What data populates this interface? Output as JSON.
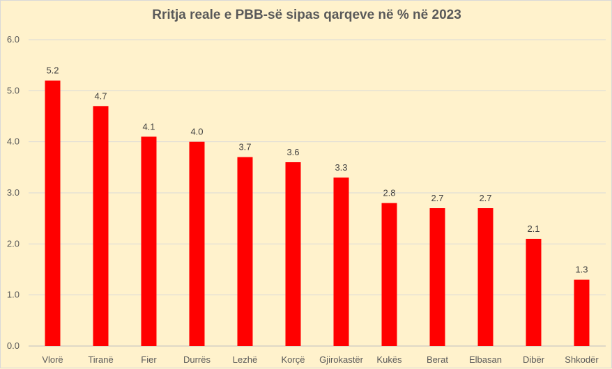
{
  "chart_data": {
    "type": "bar",
    "title": "Rritja reale e PBB-së sipas qarqeve në % në 2023",
    "categories": [
      "Vlorë",
      "Tiranë",
      "Fier",
      "Durrës",
      "Lezhë",
      "Korçë",
      "Gjirokastër",
      "Kukës",
      "Berat",
      "Elbasan",
      "Dibër",
      "Shkodër"
    ],
    "values": [
      5.2,
      4.7,
      4.1,
      4.0,
      3.7,
      3.6,
      3.3,
      2.8,
      2.7,
      2.7,
      2.1,
      1.3
    ],
    "data_labels": [
      "5.2",
      "4.7",
      "4.1",
      "4.0",
      "3.7",
      "3.6",
      "3.3",
      "2.8",
      "2.7",
      "2.7",
      "2.1",
      "1.3"
    ],
    "ylim": [
      0,
      6
    ],
    "yticks": [
      "0.0",
      "1.0",
      "2.0",
      "3.0",
      "4.0",
      "5.0",
      "6.0"
    ],
    "grid": true,
    "legend": "none",
    "bar_color": "#FF0000",
    "grid_color": "#D9D9D9",
    "background_color": "#FFF2CC"
  }
}
